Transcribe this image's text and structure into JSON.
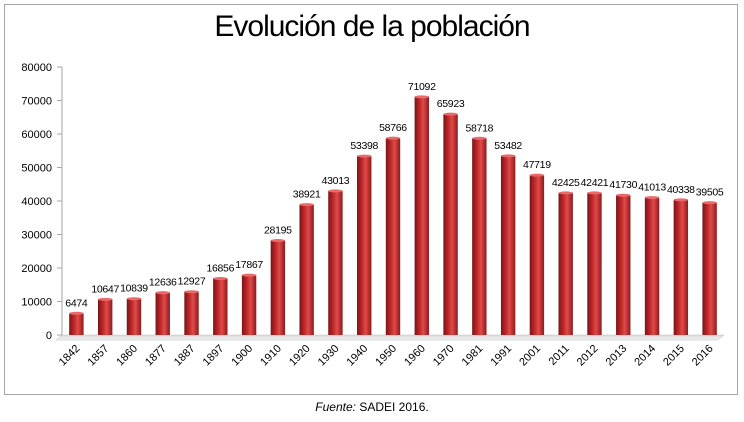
{
  "chart_data": {
    "type": "bar",
    "title": "Evolución de la población",
    "categories": [
      "1842",
      "1857",
      "1860",
      "1877",
      "1887",
      "1897",
      "1900",
      "1910",
      "1920",
      "1930",
      "1940",
      "1950",
      "1960",
      "1970",
      "1981",
      "1991",
      "2001",
      "2011",
      "2012",
      "2013",
      "2014",
      "2015",
      "2016"
    ],
    "values": [
      6474,
      10647,
      10839,
      12636,
      12927,
      16856,
      17867,
      28195,
      38921,
      43013,
      53398,
      58766,
      71092,
      65923,
      58718,
      53482,
      47719,
      42425,
      42421,
      41730,
      41013,
      40338,
      39505
    ],
    "ylim": [
      0,
      80000
    ],
    "yticks": [
      0,
      10000,
      20000,
      30000,
      40000,
      50000,
      60000,
      70000,
      80000
    ],
    "xlabel": "",
    "ylabel": "",
    "grid": false,
    "legend": "none",
    "bar_color": "#c0282a"
  },
  "source": {
    "label": "Fuente:",
    "text": "SADEI 2016."
  }
}
